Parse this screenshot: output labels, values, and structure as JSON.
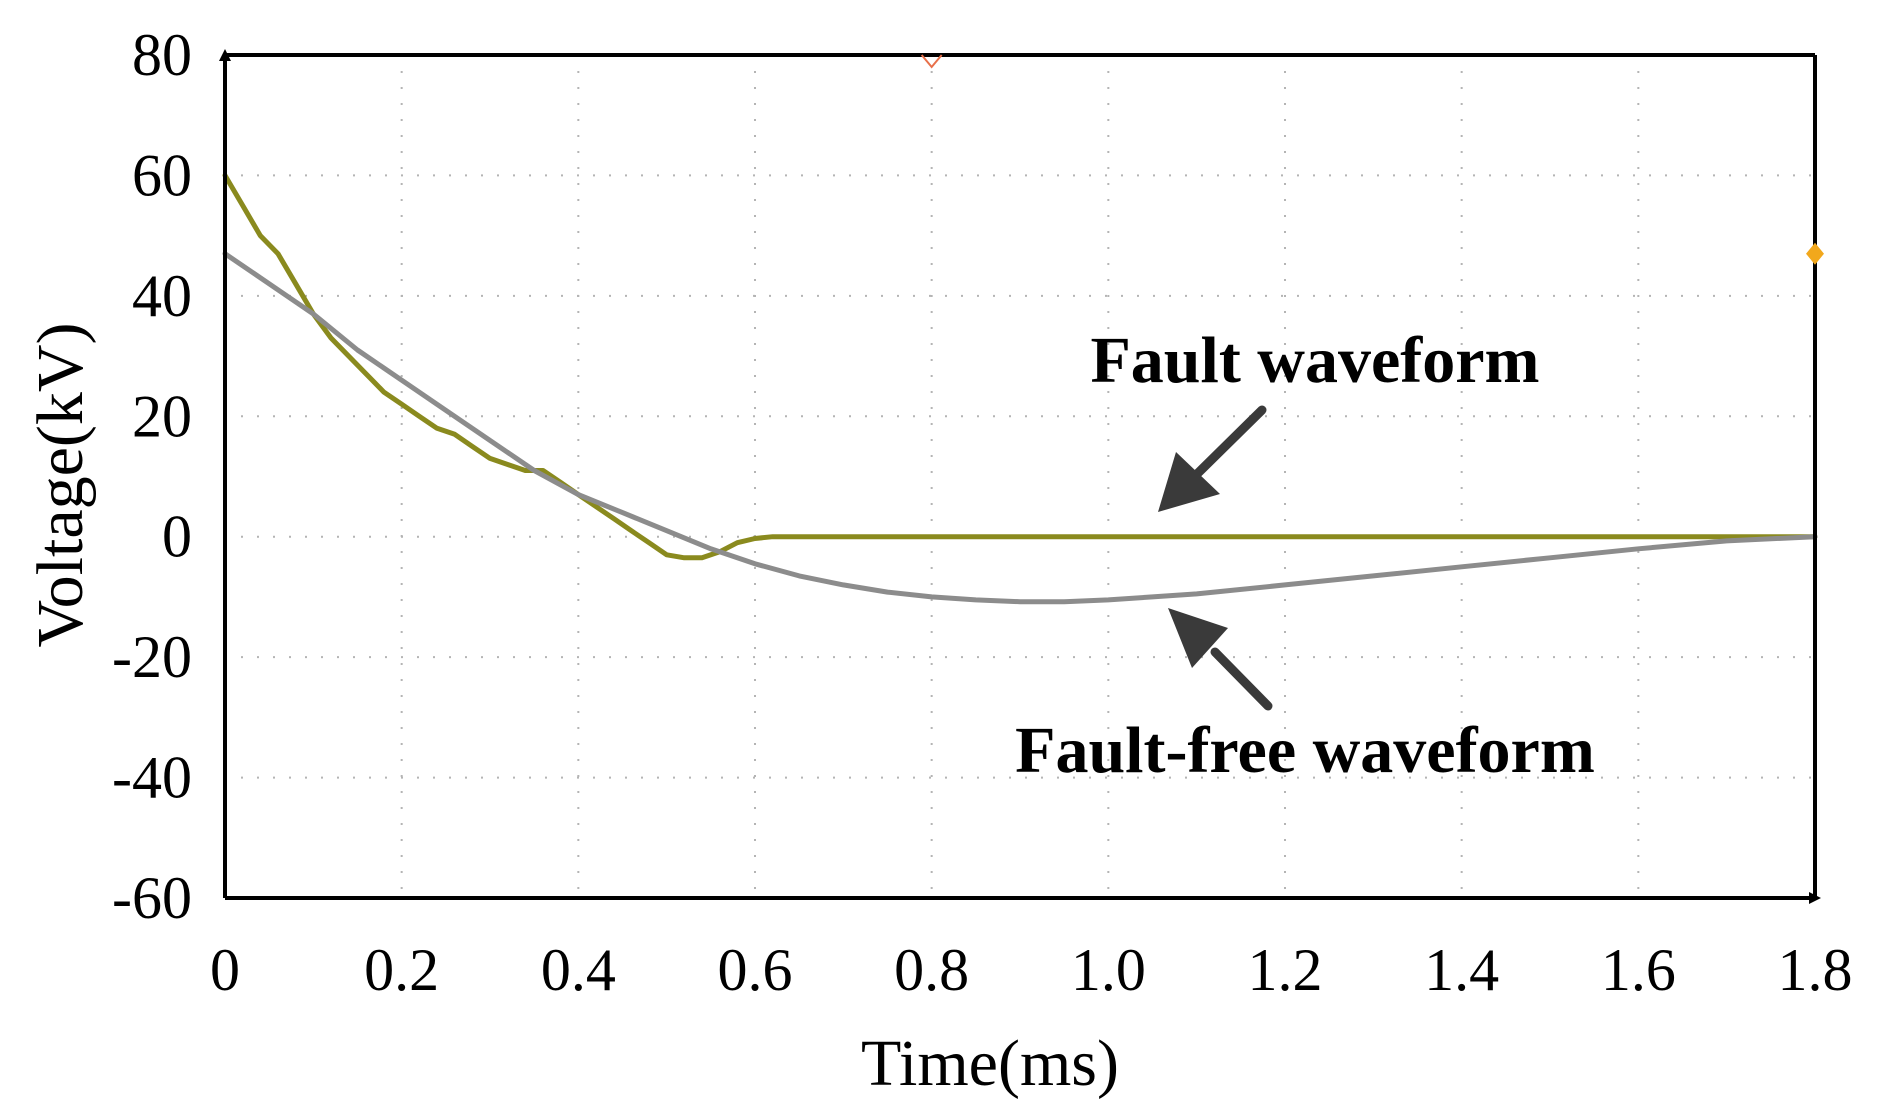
{
  "chart_data": {
    "type": "line",
    "title": "",
    "xlabel": "Time(ms)",
    "ylabel": "Voltage(kV)",
    "xlim": [
      0,
      1.8
    ],
    "ylim": [
      -60,
      80
    ],
    "x_ticks": [
      0,
      0.2,
      0.4,
      0.6,
      0.8,
      1.0,
      1.2,
      1.4,
      1.6,
      1.8
    ],
    "x_tick_labels": [
      "0",
      "0.2",
      "0.4",
      "0.6",
      "0.8",
      "1.0",
      "1.2",
      "1.4",
      "1.6",
      "1.8"
    ],
    "y_ticks": [
      80,
      60,
      40,
      20,
      0,
      -20,
      -40,
      -60
    ],
    "y_tick_labels": [
      "80",
      "60",
      "40",
      "20",
      "0",
      "-20",
      "-40",
      "-60"
    ],
    "grid": true,
    "series": [
      {
        "name": "Fault waveform",
        "color": "#8a8a1e",
        "x": [
          0,
          0.02,
          0.04,
          0.06,
          0.08,
          0.1,
          0.12,
          0.14,
          0.16,
          0.18,
          0.2,
          0.22,
          0.24,
          0.26,
          0.28,
          0.3,
          0.32,
          0.34,
          0.36,
          0.38,
          0.4,
          0.42,
          0.44,
          0.46,
          0.48,
          0.5,
          0.52,
          0.54,
          0.56,
          0.58,
          0.6,
          0.62,
          0.64,
          0.7,
          0.8,
          1.0,
          1.2,
          1.4,
          1.6,
          1.8
        ],
        "y": [
          60,
          55,
          50,
          47,
          42,
          37,
          33,
          30,
          27,
          24,
          22,
          20,
          18,
          17,
          15,
          13,
          12,
          11,
          11,
          9,
          7,
          5,
          3,
          1,
          -1,
          -3,
          -3.5,
          -3.5,
          -2.5,
          -1,
          -0.3,
          0,
          0,
          0,
          0,
          0,
          0,
          0,
          0,
          0
        ]
      },
      {
        "name": "Fault-free waveform",
        "color": "#8c8c8c",
        "x": [
          0,
          0.05,
          0.1,
          0.15,
          0.2,
          0.25,
          0.3,
          0.35,
          0.4,
          0.45,
          0.5,
          0.55,
          0.6,
          0.65,
          0.7,
          0.75,
          0.8,
          0.85,
          0.9,
          0.95,
          1.0,
          1.05,
          1.1,
          1.2,
          1.3,
          1.4,
          1.5,
          1.6,
          1.7,
          1.8
        ],
        "y": [
          47,
          42,
          37,
          31,
          26,
          21,
          16,
          11,
          7,
          4,
          1,
          -2,
          -4.5,
          -6.5,
          -8,
          -9.2,
          -10,
          -10.5,
          -10.8,
          -10.8,
          -10.5,
          -10,
          -9.5,
          -8,
          -6.5,
          -5,
          -3.5,
          -2,
          -0.7,
          0
        ]
      }
    ],
    "annotations": [
      {
        "text": "Fault waveform",
        "target_series": "Fault waveform"
      },
      {
        "text": "Fault-free waveform",
        "target_series": "Fault-free waveform"
      }
    ],
    "marker_color": "#f2a81c",
    "axis_color": "#000000",
    "grid_color": "#b4b4b4",
    "arrow_color": "#3a3a3a"
  }
}
